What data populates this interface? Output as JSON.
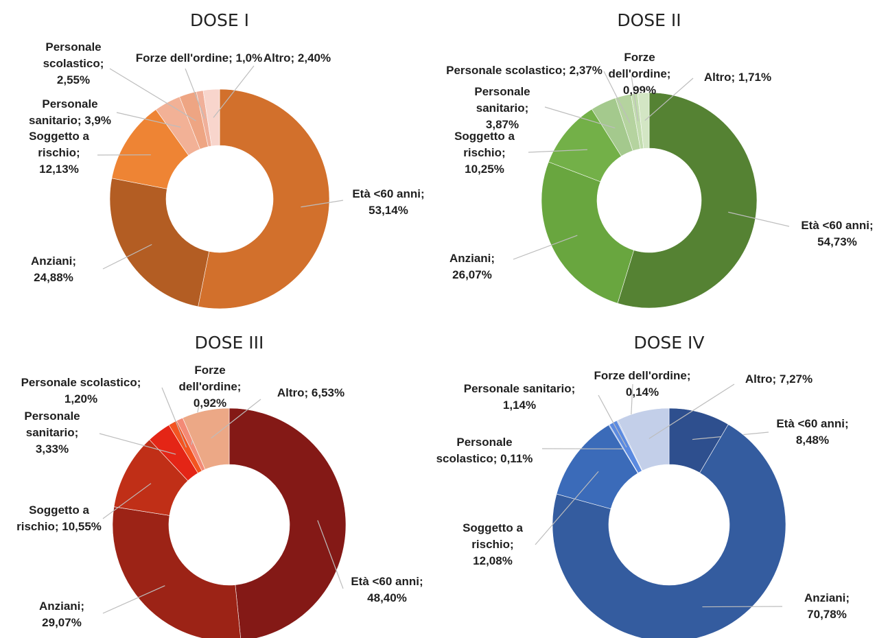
{
  "chart_data": [
    {
      "type": "pie",
      "title": "DOSE I",
      "colors": [
        "#d2702c",
        "#b35d23",
        "#ee8434",
        "#f2b196",
        "#eea583",
        "#f0b09a",
        "#f8d5cc"
      ],
      "slices": [
        {
          "name": "Età <60 anni",
          "value": 53.14,
          "label_lines": [
            "Età <60 anni;",
            "53,14%"
          ]
        },
        {
          "name": "Anziani",
          "value": 24.88,
          "label_lines": [
            "Anziani;",
            "24,88%"
          ]
        },
        {
          "name": "Soggetto a rischio",
          "value": 12.13,
          "label_lines": [
            "Soggetto a",
            "rischio;",
            "12,13%"
          ]
        },
        {
          "name": "Personale sanitario",
          "value": 3.9,
          "label_lines": [
            "Personale",
            "sanitario; 3,9%"
          ]
        },
        {
          "name": "Personale scolastico",
          "value": 2.55,
          "label_lines": [
            "Personale",
            "scolastico;",
            "2,55%"
          ]
        },
        {
          "name": "Forze dell'ordine",
          "value": 1.0,
          "label_lines": [
            "Forze dell'ordine; 1,0%"
          ]
        },
        {
          "name": "Altro",
          "value": 2.4,
          "label_lines": [
            "Altro; 2,40%"
          ]
        }
      ]
    },
    {
      "type": "pie",
      "title": "DOSE II",
      "colors": [
        "#558233",
        "#69a63f",
        "#73b048",
        "#a4c98d",
        "#b5d39f",
        "#c2dcae",
        "#d3e6c4"
      ],
      "slices": [
        {
          "name": "Età <60 anni",
          "value": 54.73,
          "label_lines": [
            "Età <60 anni;",
            "54,73%"
          ]
        },
        {
          "name": "Anziani",
          "value": 26.07,
          "label_lines": [
            "Anziani;",
            "26,07%"
          ]
        },
        {
          "name": "Soggetto a rischio",
          "value": 10.25,
          "label_lines": [
            "Soggetto a",
            "rischio;",
            "10,25%"
          ]
        },
        {
          "name": "Personale sanitario",
          "value": 3.87,
          "label_lines": [
            "Personale",
            "sanitario;",
            "3,87%"
          ]
        },
        {
          "name": "Personale scolastico",
          "value": 2.37,
          "label_lines": [
            "Personale scolastico; 2,37%"
          ]
        },
        {
          "name": "Forze dell'ordine",
          "value": 0.99,
          "label_lines": [
            "Forze",
            "dell'ordine;",
            "0,99%"
          ]
        },
        {
          "name": "Altro",
          "value": 1.71,
          "label_lines": [
            "Altro; 1,71%"
          ]
        }
      ]
    },
    {
      "type": "pie",
      "title": "DOSE III",
      "colors": [
        "#841916",
        "#9c2316",
        "#c02f17",
        "#e42516",
        "#f35421",
        "#f38a76",
        "#eca886"
      ],
      "slices": [
        {
          "name": "Età <60 anni",
          "value": 48.4,
          "label_lines": [
            "Età <60 anni;",
            "48,40%"
          ]
        },
        {
          "name": "Anziani",
          "value": 29.07,
          "label_lines": [
            "Anziani;",
            "29,07%"
          ]
        },
        {
          "name": "Soggetto a rischio",
          "value": 10.55,
          "label_lines": [
            "Soggetto a",
            "rischio; 10,55%"
          ]
        },
        {
          "name": "Personale sanitario",
          "value": 3.33,
          "label_lines": [
            "Personale",
            "sanitario;",
            "3,33%"
          ]
        },
        {
          "name": "Personale scolastico",
          "value": 1.2,
          "label_lines": [
            "Personale scolastico;",
            "1,20%"
          ]
        },
        {
          "name": "Forze dell'ordine",
          "value": 0.92,
          "label_lines": [
            "Forze",
            "dell'ordine;",
            "0,92%"
          ]
        },
        {
          "name": "Altro",
          "value": 6.53,
          "label_lines": [
            "Altro; 6,53%"
          ]
        }
      ]
    },
    {
      "type": "pie",
      "title": "DOSE IV",
      "colors": [
        "#2e4f8e",
        "#345c9f",
        "#3b6bb9",
        "#4778d0",
        "#5b8ae0",
        "#a9bbe1",
        "#c3cfe9"
      ],
      "slices": [
        {
          "name": "Età <60 anni",
          "value": 8.48,
          "label_lines": [
            "Età <60 anni;",
            "8,48%"
          ]
        },
        {
          "name": "Anziani",
          "value": 70.78,
          "label_lines": [
            "Anziani;",
            "70,78%"
          ]
        },
        {
          "name": "Soggetto a rischio",
          "value": 12.08,
          "label_lines": [
            "Soggetto a",
            "rischio;",
            "12,08%"
          ]
        },
        {
          "name": "Personale scolastico",
          "value": 0.11,
          "label_lines": [
            "Personale",
            "scolastico; 0,11%"
          ]
        },
        {
          "name": "Personale sanitario",
          "value": 1.14,
          "label_lines": [
            "Personale sanitario;",
            "1,14%"
          ]
        },
        {
          "name": "Forze dell'ordine",
          "value": 0.14,
          "label_lines": [
            "Forze dell'ordine;",
            "0,14%"
          ]
        },
        {
          "name": "Altro",
          "value": 7.27,
          "label_lines": [
            "Altro; 7,27%"
          ]
        }
      ]
    }
  ]
}
